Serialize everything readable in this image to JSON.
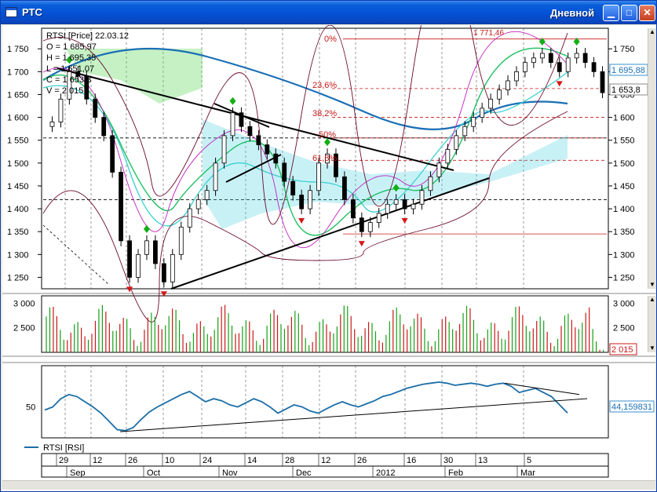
{
  "window": {
    "title": "РТС",
    "view_label": "Дневной",
    "buttons": [
      "minimize",
      "maximize",
      "close"
    ]
  },
  "price_panel": {
    "info": {
      "symbol_line": "RTSI [Price] 22.03.12",
      "open": "O = 1 685,97",
      "high": "H = 1 695,35",
      "low": "L = 1 651,07",
      "close": "C = 1 653,8",
      "volume": "V = 2 015"
    },
    "fib_labels": [
      "0%",
      "23,6%",
      "38,2%",
      "50%",
      "61,8%"
    ],
    "fib_top_value": "1 771,46",
    "last_price_labels": [
      "1 695,88",
      "1 653,8"
    ]
  },
  "volume_panel": {
    "last_value_label": "2 015"
  },
  "rsi_panel": {
    "legend": "RTSI [RSI]",
    "last_value_label": "44,159831"
  },
  "date_axis": {
    "day_ticks": [
      "29",
      "12",
      "26",
      "10",
      "24",
      "14",
      "28",
      "12",
      "26",
      "16",
      "30",
      "13",
      "5"
    ],
    "month_ticks": [
      "Sep",
      "Oct",
      "Nov",
      "Dec",
      "2012",
      "Feb",
      "Mar"
    ]
  },
  "chart_data": [
    {
      "type": "candlestick",
      "name": "RTSI [Price]",
      "y_ticks": [
        "1 750",
        "1 700",
        "1 650",
        "1 600",
        "1 550",
        "1 500",
        "1 450",
        "1 400",
        "1 350",
        "1 300",
        "1 250"
      ],
      "ylim": [
        1225,
        1795
      ],
      "x_month_labels": [
        "Sep",
        "Oct",
        "Nov",
        "Dec",
        "2012",
        "Feb",
        "Mar"
      ],
      "approx_close": [
        1590,
        1640,
        1700,
        1690,
        1640,
        1600,
        1560,
        1480,
        1330,
        1250,
        1300,
        1330,
        1280,
        1240,
        1300,
        1360,
        1400,
        1420,
        1440,
        1500,
        1560,
        1610,
        1580,
        1560,
        1540,
        1520,
        1500,
        1460,
        1430,
        1400,
        1440,
        1500,
        1520,
        1470,
        1420,
        1380,
        1350,
        1370,
        1390,
        1410,
        1420,
        1400,
        1410,
        1440,
        1470,
        1500,
        1530,
        1560,
        1580,
        1600,
        1620,
        1640,
        1660,
        1680,
        1700,
        1720,
        1730,
        1740,
        1720,
        1700,
        1730,
        1740,
        1720,
        1700,
        1654
      ],
      "fibonacci": {
        "0%": 1771.46,
        "23,6%": 1663,
        "38,2%": 1600,
        "50%": 1555,
        "61,8%": 1506,
        "100%": 1345
      },
      "last_price": 1653.8,
      "marker_up_color": "#12b012",
      "marker_down_color": "#d81818",
      "candle_colors": {
        "up": "#ffffff",
        "down": "#000000"
      }
    },
    {
      "type": "bar",
      "name": "Volume",
      "y_ticks": [
        "3 000",
        "2 500"
      ],
      "ylim": [
        2000,
        3150
      ],
      "last_value": 2015,
      "colors": {
        "up": "#16a016",
        "down": "#c81818"
      }
    },
    {
      "type": "line",
      "name": "RTSI [RSI]",
      "y_ticks": [
        "50"
      ],
      "ylim": [
        20,
        90
      ],
      "values": [
        47,
        50,
        58,
        62,
        60,
        55,
        50,
        44,
        36,
        28,
        27,
        30,
        38,
        45,
        50,
        54,
        58,
        62,
        65,
        60,
        55,
        58,
        56,
        52,
        50,
        54,
        58,
        55,
        50,
        44,
        48,
        52,
        50,
        46,
        44,
        48,
        52,
        55,
        52,
        50,
        53,
        56,
        60,
        62,
        65,
        68,
        70,
        72,
        73,
        74,
        73,
        71,
        72,
        73,
        72,
        70,
        72,
        73,
        70,
        64,
        66,
        68,
        64,
        60,
        52,
        44.16
      ],
      "last_value": 44.159831,
      "color": "#1b6ea8"
    }
  ]
}
